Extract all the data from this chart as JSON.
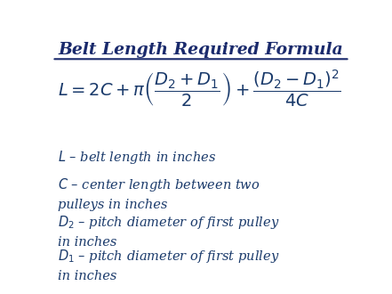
{
  "title": "Belt Length Required Formula",
  "title_color": "#1a2a6c",
  "bg_color": "#ffffff",
  "text_color": "#1a3a6b",
  "descriptions": [
    "$\\mathit{L}$ – belt length in inches",
    "$\\mathit{C}$ – center length between two\npulleys in inches",
    "$\\mathit{D}_2$ – pitch diameter of first pulley\nin inches",
    "$\\mathit{D}_1$ – pitch diameter of first pulley\nin inches"
  ],
  "figsize": [
    4.41,
    3.3
  ],
  "dpi": 100
}
